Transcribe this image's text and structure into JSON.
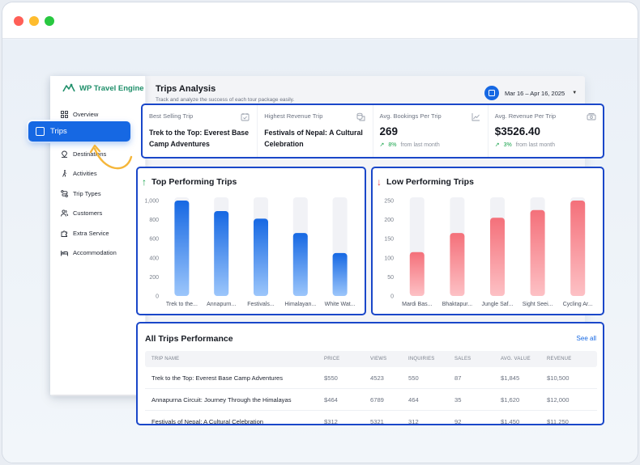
{
  "app": {
    "brand_prefix": "WP ",
    "brand_name": "Travel Engine"
  },
  "sidebar": {
    "items": [
      {
        "label": "Overview",
        "icon": "grid-icon"
      },
      {
        "label": "Trips",
        "icon": "suitcase-icon",
        "active": true
      },
      {
        "label": "Destinations",
        "icon": "pin-icon"
      },
      {
        "label": "Activities",
        "icon": "hiker-icon"
      },
      {
        "label": "Trip Types",
        "icon": "route-icon"
      },
      {
        "label": "Customers",
        "icon": "users-icon"
      },
      {
        "label": "Extra Service",
        "icon": "puzzle-icon"
      },
      {
        "label": "Accommodation",
        "icon": "bed-icon"
      }
    ]
  },
  "header": {
    "title": "Trips Analysis",
    "subtitle": "Track and analyze the success of each tour package easily.",
    "date_range": "Mar 16 – Apr 16, 2025"
  },
  "stats": [
    {
      "label": "Best Selling Trip",
      "title": "Trek to the Top: Everest Base Camp Adventures",
      "icon": "calendar-check-icon"
    },
    {
      "label": "Highest Revenue Trip",
      "title": "Festivals of Nepal: A Cultural Celebration",
      "icon": "coins-icon"
    },
    {
      "label": "Avg. Bookings Per Trip",
      "value": "269",
      "change": "8%",
      "change_note": "from last month",
      "icon": "trend-icon"
    },
    {
      "label": "Avg. Revenue Per Trip",
      "value": "$3526.40",
      "change": "3%",
      "change_note": "from last month",
      "icon": "cash-icon"
    }
  ],
  "top_chart": {
    "title": "Top Performing Trips",
    "accent": "#1668e3"
  },
  "low_chart": {
    "title": "Low Performing Trips",
    "accent": "#f4707a"
  },
  "chart_data": [
    {
      "type": "bar",
      "title": "Top Performing Trips",
      "categories": [
        "Trek to the...",
        "Annapurn...",
        "Festivals...",
        "Himalayan...",
        "White Wat..."
      ],
      "values": [
        1000,
        890,
        810,
        660,
        450
      ],
      "ylim": [
        0,
        1000
      ],
      "yticks": [
        "0",
        "200",
        "400",
        "600",
        "800",
        "1,000"
      ],
      "ytick_values": [
        0,
        200,
        400,
        600,
        800,
        1000
      ],
      "color": "#1668e3"
    },
    {
      "type": "bar",
      "title": "Low Performing Trips",
      "categories": [
        "Mardi Bas...",
        "Bhaktapur...",
        "Jungle Saf...",
        "Sight Seei...",
        "Cycling Ar..."
      ],
      "values": [
        115,
        165,
        205,
        225,
        250
      ],
      "ylim": [
        0,
        250
      ],
      "yticks": [
        "0",
        "50",
        "100",
        "150",
        "200",
        "250"
      ],
      "ytick_values": [
        0,
        50,
        100,
        150,
        200,
        250
      ],
      "color": "#f4707a"
    }
  ],
  "table": {
    "title": "All Trips Performance",
    "see_all": "See all",
    "columns": [
      "TRIP NAME",
      "PRICE",
      "VIEWS",
      "INQUIRIES",
      "SALES",
      "AVG. VALUE",
      "REVENUE"
    ],
    "rows": [
      [
        "Trek to the Top: Everest Base Camp Adventures",
        "$550",
        "4523",
        "550",
        "87",
        "$1,845",
        "$10,500"
      ],
      [
        "Annapurna Circuit: Journey Through the Himalayas",
        "$464",
        "6789",
        "464",
        "35",
        "$1,620",
        "$12,000"
      ],
      [
        "Festivals of Nepal: A Cultural Celebration",
        "$312",
        "5321",
        "312",
        "92",
        "$1,450",
        "$11,250"
      ]
    ]
  }
}
